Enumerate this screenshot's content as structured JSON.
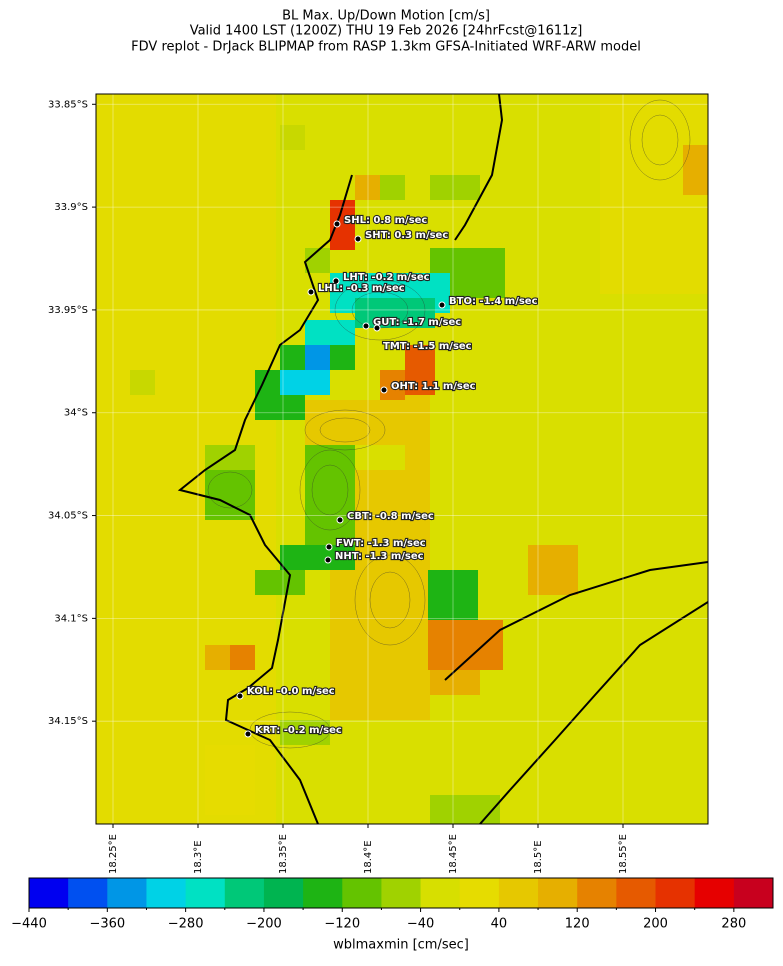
{
  "title": [
    "BL Max. Up/Down Motion [cm/s]",
    "Valid 1400 LST (1200Z) THU 19 Feb 2026 [24hrFcst@1611z]",
    "FDV replot - DrJack BLIPMAP from RASP 1.3km GFSA-Initiated WRF-ARW model"
  ],
  "map": {
    "xlim": [
      18.24,
      18.6
    ],
    "ylim": [
      -34.2,
      -33.845
    ],
    "grid": true,
    "xticks": [
      {
        "value": 18.25,
        "label": "18.25°E"
      },
      {
        "value": 18.3,
        "label": "18.3°E"
      },
      {
        "value": 18.35,
        "label": "18.35°E"
      },
      {
        "value": 18.4,
        "label": "18.4°E"
      },
      {
        "value": 18.45,
        "label": "18.45°E"
      },
      {
        "value": 18.5,
        "label": "18.5°E"
      },
      {
        "value": 18.55,
        "label": "18.55°E"
      }
    ],
    "yticks": [
      {
        "value": -33.85,
        "label": "33.85°S"
      },
      {
        "value": -33.9,
        "label": "33.9°S"
      },
      {
        "value": -33.95,
        "label": "33.95°S"
      },
      {
        "value": -34,
        "label": "34°S"
      },
      {
        "value": -34.05,
        "label": "34.05°S"
      },
      {
        "value": -34.1,
        "label": "34.1°S"
      },
      {
        "value": -34.15,
        "label": "34.15°S"
      }
    ]
  },
  "stations": [
    "SHL: 0.8 m/sec",
    "SHT: 0.3 m/sec",
    "LHT: -0.2 m/sec",
    "LHL: -0.3 m/sec",
    "BTO: -1.4 m/sec",
    "GUT: -1.7 m/sec",
    "TMT: -1.5 m/sec",
    "OHT: 1.1 m/sec",
    "CBT: -0.8 m/sec",
    "FWT: -1.3 m/sec",
    "NHT: -1.3 m/sec",
    "KOL: -0.0 m/sec",
    "KRT: -0.2 m/sec"
  ],
  "colorbar": {
    "label": "wblmaxmin [cm/sec]",
    "clim": [
      -440,
      320
    ],
    "colors": [
      "#0000f0",
      "#0050f0",
      "#0096e6",
      "#00d2e6",
      "#00e1c3",
      "#00c878",
      "#00b450",
      "#1eb414",
      "#64c300",
      "#a0d200",
      "#d7df00",
      "#e6dc00",
      "#e6c800",
      "#e6af00",
      "#e68200",
      "#e65a00",
      "#e63200",
      "#e60000",
      "#c8001e"
    ],
    "ticks": [
      {
        "value": -440,
        "label": "−440"
      },
      {
        "value": -360,
        "label": "−360"
      },
      {
        "value": -280,
        "label": "−280"
      },
      {
        "value": -200,
        "label": "−200"
      },
      {
        "value": -120,
        "label": "−120"
      },
      {
        "value": -40,
        "label": "−40"
      },
      40,
      120,
      200,
      280
    ],
    "minor_ticks": [
      -400,
      -320,
      -240,
      -160,
      -80,
      0,
      80,
      160,
      240
    ]
  }
}
